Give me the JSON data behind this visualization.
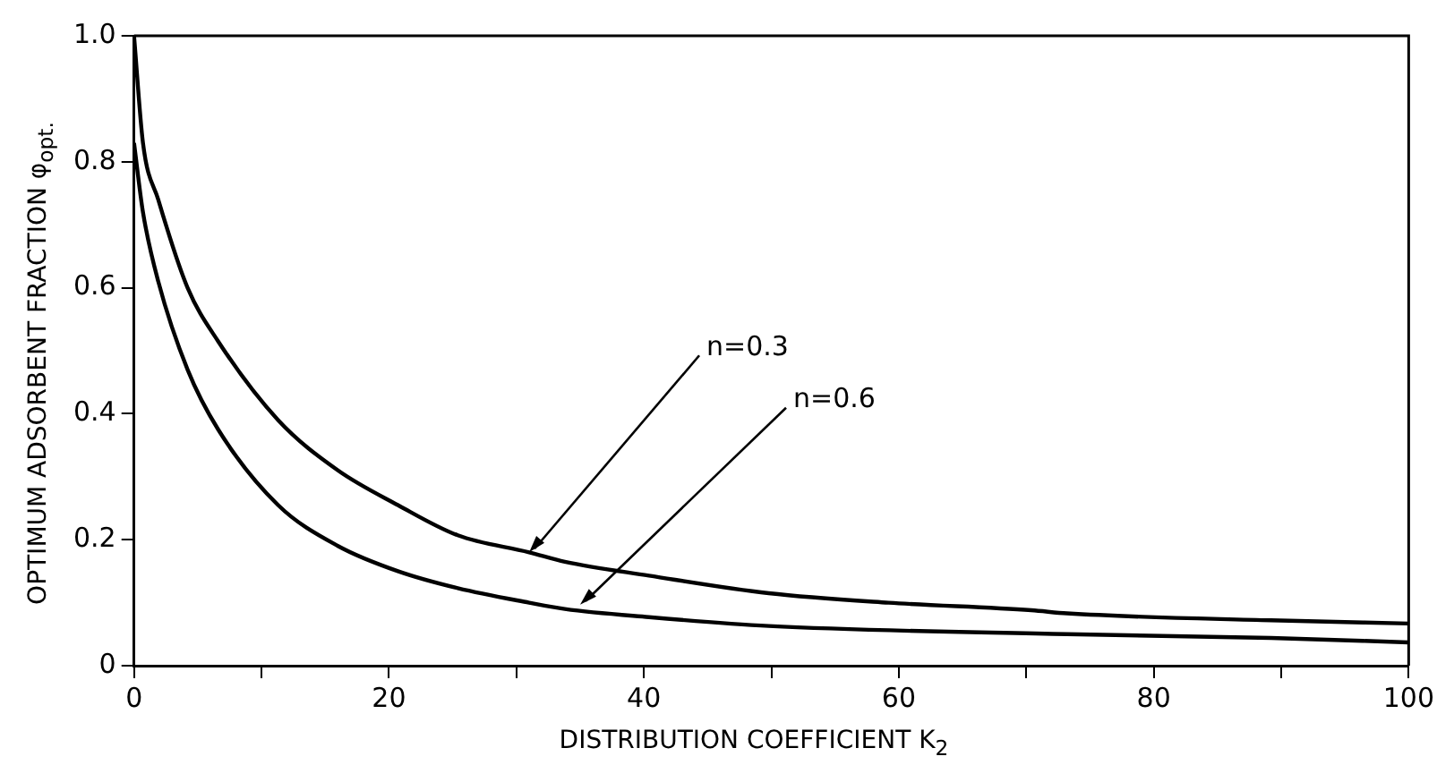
{
  "chart_data": {
    "type": "line",
    "xlabel": "DISTRIBUTION COEFFICIENT K$_{2}$",
    "ylabel": "OPTIMUM ADSORBENT FRACTION φ$_{opt.}$",
    "xlim": [
      0,
      100
    ],
    "ylim": [
      0,
      1
    ],
    "xticks": [
      0,
      {
        "value": 10,
        "label": null
      },
      20,
      {
        "value": 30,
        "label": null
      },
      40,
      {
        "value": 50,
        "label": null
      },
      60,
      {
        "value": 70,
        "label": null
      },
      80,
      {
        "value": 90,
        "label": null
      },
      100
    ],
    "yticks": [
      0,
      0.2,
      0.4,
      0.6,
      0.8,
      {
        "value": 1,
        "label": "1.0"
      }
    ],
    "grid": false,
    "legend": false,
    "marker": "none",
    "line_style": "solid",
    "series": [
      {
        "color": "#000000",
        "x": [
          0,
          0.7,
          1.9,
          4.2,
          6.6,
          11.3,
          16,
          20.7,
          25.4,
          31,
          33.8,
          40.4,
          49.8,
          59.2,
          70.4,
          73.2,
          89.2,
          100
        ],
        "values": [
          1.0,
          0.83,
          0.74,
          0.6,
          0.515,
          0.39,
          0.31,
          0.255,
          0.207,
          0.18,
          0.165,
          0.143,
          0.115,
          0.1,
          0.088,
          0.083,
          0.072,
          0.067
        ]
      },
      {
        "color": "#000000",
        "x": [
          0,
          0.7,
          1.9,
          4.2,
          6.6,
          11.3,
          16,
          20.7,
          25.4,
          31,
          33.8,
          40.4,
          49.8,
          73.2,
          89.2,
          100
        ],
        "values": [
          0.83,
          0.72,
          0.61,
          0.47,
          0.375,
          0.255,
          0.19,
          0.15,
          0.123,
          0.1,
          0.09,
          0.077,
          0.063,
          0.05,
          0.044,
          0.037
        ]
      }
    ],
    "annotations": [
      {
        "text": "n=0.3",
        "x": 31,
        "y": 0.18
      },
      {
        "text": "n=0.6",
        "x": 35,
        "y": 0.097
      }
    ]
  }
}
